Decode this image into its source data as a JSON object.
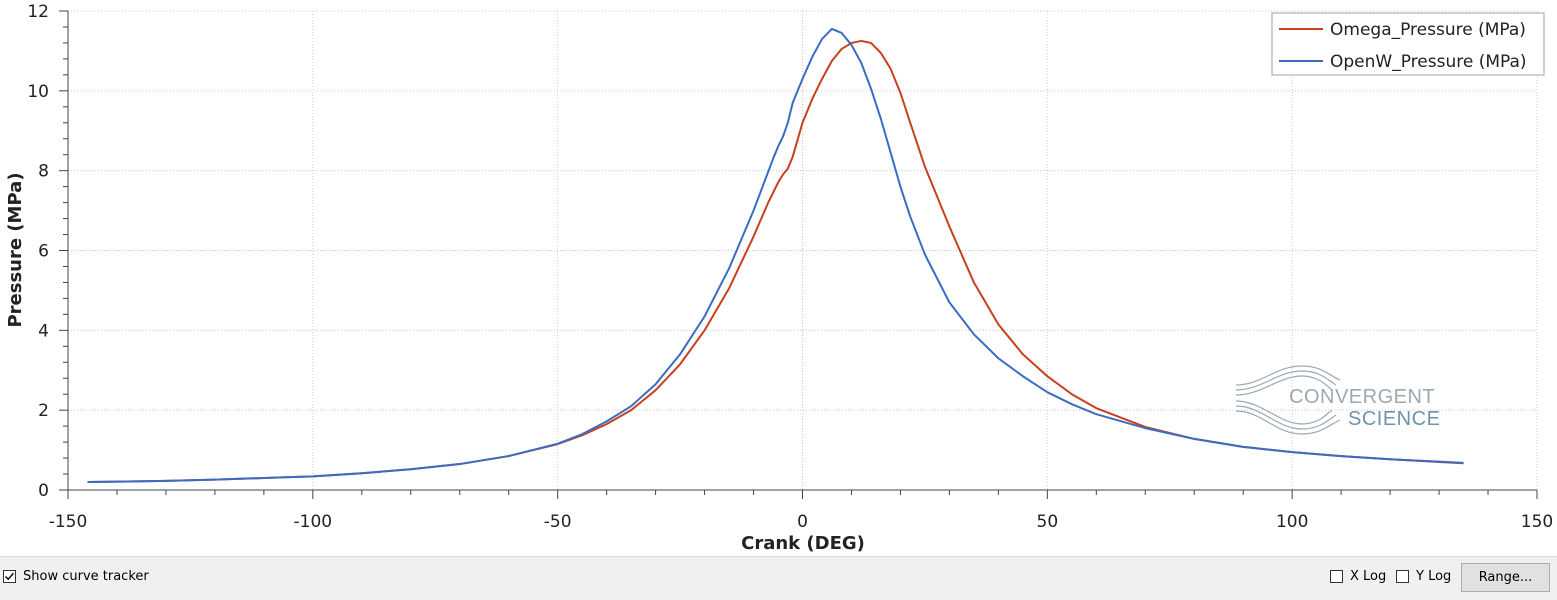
{
  "chart_data": {
    "type": "line",
    "xlabel": "Crank (DEG)",
    "ylabel": "Pressure (MPa)",
    "xlim": [
      -150,
      150
    ],
    "ylim": [
      0,
      12
    ],
    "x_ticks": [
      "-150",
      "-100",
      "-50",
      "0",
      "50",
      "100",
      "150"
    ],
    "y_ticks": [
      "0",
      "2",
      "4",
      "6",
      "8",
      "10",
      "12"
    ],
    "grid": true,
    "legend_position": "top-right",
    "series": [
      {
        "name": "Omega_Pressure (MPa)",
        "color": "#c8401c",
        "x": [
          -146,
          -140,
          -130,
          -120,
          -110,
          -100,
          -90,
          -80,
          -70,
          -60,
          -50,
          -45,
          -40,
          -35,
          -30,
          -25,
          -20,
          -15,
          -10,
          -7,
          -5,
          -4,
          -3,
          -2,
          0,
          2,
          4,
          6,
          8,
          10,
          12,
          14,
          16,
          18,
          20,
          22,
          25,
          30,
          35,
          40,
          45,
          50,
          55,
          60,
          70,
          80,
          90,
          100,
          110,
          120,
          130,
          135
        ],
        "y": [
          0.2,
          0.21,
          0.23,
          0.26,
          0.3,
          0.34,
          0.42,
          0.52,
          0.65,
          0.85,
          1.15,
          1.37,
          1.65,
          2.0,
          2.5,
          3.15,
          4.0,
          5.05,
          6.35,
          7.2,
          7.7,
          7.9,
          8.05,
          8.35,
          9.2,
          9.8,
          10.3,
          10.75,
          11.05,
          11.2,
          11.25,
          11.2,
          10.95,
          10.55,
          9.95,
          9.2,
          8.1,
          6.6,
          5.2,
          4.15,
          3.4,
          2.85,
          2.4,
          2.05,
          1.58,
          1.28,
          1.08,
          0.95,
          0.85,
          0.77,
          0.7,
          0.67
        ]
      },
      {
        "name": "OpenW_Pressure (MPa)",
        "color": "#3a6cc2",
        "x": [
          -146,
          -140,
          -130,
          -120,
          -110,
          -100,
          -90,
          -80,
          -70,
          -60,
          -50,
          -45,
          -40,
          -35,
          -30,
          -25,
          -20,
          -15,
          -10,
          -8,
          -6,
          -5,
          -4,
          -3,
          -2,
          0,
          2,
          4,
          6,
          8,
          10,
          12,
          14,
          16,
          18,
          20,
          22,
          25,
          30,
          35,
          40,
          45,
          50,
          55,
          60,
          70,
          80,
          90,
          100,
          110,
          120,
          130,
          135
        ],
        "y": [
          0.2,
          0.21,
          0.23,
          0.26,
          0.3,
          0.34,
          0.42,
          0.52,
          0.65,
          0.85,
          1.16,
          1.4,
          1.72,
          2.1,
          2.65,
          3.4,
          4.35,
          5.55,
          7.0,
          7.65,
          8.3,
          8.6,
          8.85,
          9.2,
          9.7,
          10.3,
          10.85,
          11.3,
          11.55,
          11.45,
          11.15,
          10.7,
          10.05,
          9.3,
          8.45,
          7.6,
          6.85,
          5.9,
          4.7,
          3.9,
          3.3,
          2.85,
          2.45,
          2.15,
          1.9,
          1.55,
          1.28,
          1.08,
          0.95,
          0.85,
          0.77,
          0.71,
          0.68
        ]
      }
    ]
  },
  "watermark": {
    "line1": "CONVERGENT",
    "line2": "SCIENCE"
  },
  "controls": {
    "show_curve_tracker_label": "Show curve tracker",
    "show_curve_tracker_checked": true,
    "x_log_label": "X Log",
    "x_log_checked": false,
    "y_log_label": "Y Log",
    "y_log_checked": false,
    "range_button_label": "Range..."
  }
}
